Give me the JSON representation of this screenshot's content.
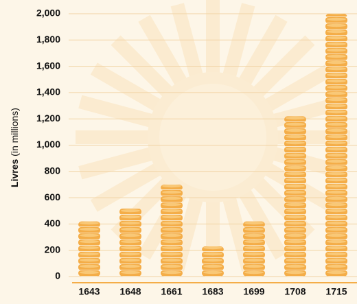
{
  "chart_data": {
    "type": "bar",
    "ylabel": {
      "bold": "Livres",
      "normal": "(in millions)"
    },
    "categories": [
      "1643",
      "1648",
      "1661",
      "1683",
      "1699",
      "1708",
      "1715"
    ],
    "values": [
      420,
      520,
      700,
      230,
      420,
      1220,
      2000
    ],
    "color": "#f4ad48",
    "ylim": [
      0,
      2000
    ],
    "yticks": [
      0,
      200,
      400,
      600,
      800,
      {
        "value": 1000,
        "label": "1,000"
      },
      {
        "value": 1200,
        "label": "1,200"
      },
      {
        "value": 1400,
        "label": "1,400"
      },
      {
        "value": 1600,
        "label": "1,600"
      },
      {
        "value": 1800,
        "label": "1,800"
      },
      {
        "value": 2000,
        "label": "2,000"
      }
    ],
    "grid": true
  }
}
